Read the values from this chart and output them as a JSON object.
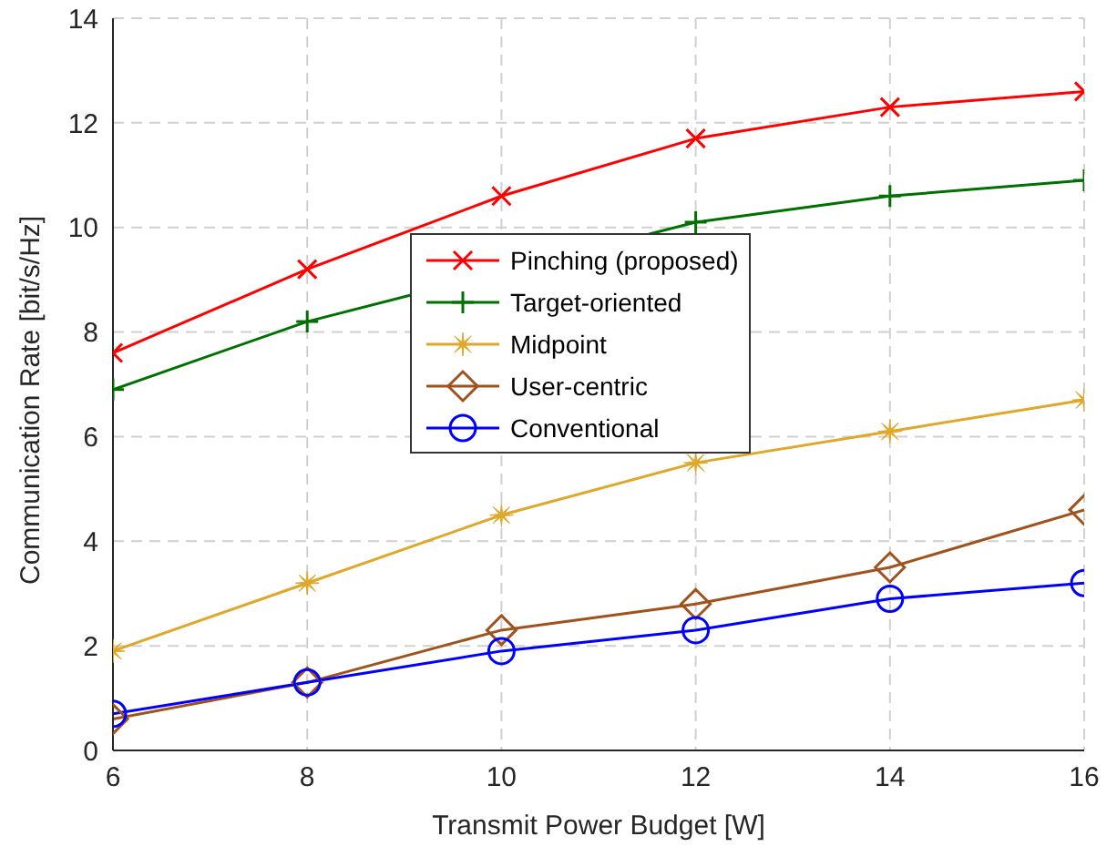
{
  "chart_data": {
    "type": "line",
    "xlabel": "Transmit Power Budget [W]",
    "ylabel": "Communication Rate [bit/s/Hz]",
    "x": [
      6,
      8,
      10,
      12,
      14,
      16
    ],
    "xlim": [
      6,
      16
    ],
    "xticks": [
      6,
      8,
      10,
      12,
      14,
      16
    ],
    "ylim": [
      0,
      14
    ],
    "yticks": [
      0,
      2,
      4,
      6,
      8,
      10,
      12,
      14
    ],
    "grid": true,
    "legend": "top",
    "line_style": "solid",
    "series": [
      {
        "name": "Pinching (proposed)",
        "color": "#ff0000",
        "marker": "cross",
        "values": [
          7.6,
          9.2,
          10.6,
          11.7,
          12.3,
          12.6
        ]
      },
      {
        "name": "Target-oriented",
        "color": "#007000",
        "marker": "plus",
        "values": [
          6.9,
          8.2,
          null,
          10.1,
          10.6,
          10.9
        ]
      },
      {
        "name": "Midpoint",
        "color": "#e0a82a",
        "marker": "star",
        "values": [
          1.9,
          3.2,
          4.5,
          5.5,
          6.1,
          6.7
        ]
      },
      {
        "name": "User-centric",
        "color": "#a0521d",
        "marker": "diamond",
        "values": [
          0.6,
          1.3,
          2.3,
          2.8,
          3.5,
          4.6
        ]
      },
      {
        "name": "Conventional",
        "color": "#0000ff",
        "marker": "circle",
        "values": [
          0.7,
          1.3,
          1.9,
          2.3,
          2.9,
          3.2
        ]
      }
    ]
  }
}
